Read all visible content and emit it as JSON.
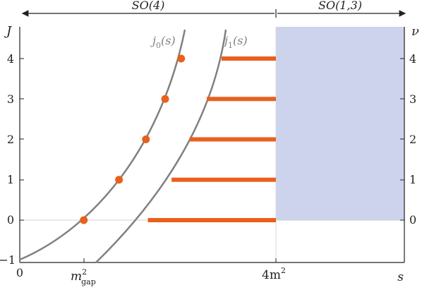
{
  "regions": {
    "left": {
      "label": "SO(4)"
    },
    "right": {
      "label": "SO(1,3)"
    }
  },
  "axes": {
    "left_label": "J",
    "right_label": "ν",
    "x_label": "s",
    "y_ticks": [
      "4",
      "3",
      "2",
      "1",
      "0",
      "−1"
    ],
    "right_ticks": [
      "4",
      "3",
      "2",
      "1",
      "0"
    ],
    "x_ticks": {
      "zero": "0",
      "gap": "m",
      "gap_sup": "2",
      "gap_sub": "gap",
      "four": "4m",
      "four_sup": "2"
    },
    "x_range": [
      0,
      4
    ],
    "y_range": [
      -1,
      4.8
    ]
  },
  "curves": {
    "j0": {
      "label": "j",
      "sub": "0",
      "arg": "(s)"
    },
    "j1": {
      "label": "j",
      "sub": "1",
      "arg": "(s)"
    }
  },
  "colors": {
    "curve": "#808080",
    "accent": "#e8601c",
    "shade": "#cdd3ec",
    "axis": "#222222",
    "baseline": "#d0d0d0"
  },
  "chart_data": {
    "type": "diagram",
    "dots": [
      {
        "J": 0,
        "s": 1.0
      },
      {
        "J": 1,
        "s": 1.55
      },
      {
        "J": 2,
        "s": 1.97
      },
      {
        "J": 3,
        "s": 2.27
      },
      {
        "J": 4,
        "s": 2.52
      }
    ],
    "bars": [
      {
        "J": 0,
        "s_start": 2.0,
        "s_end": 4.0
      },
      {
        "J": 1,
        "s_start": 2.37,
        "s_end": 4.0
      },
      {
        "J": 2,
        "s_start": 2.65,
        "s_end": 4.0
      },
      {
        "J": 3,
        "s_start": 2.92,
        "s_end": 4.0
      },
      {
        "J": 4,
        "s_start": 3.15,
        "s_end": 4.0
      }
    ],
    "shaded_region": {
      "s_min": 4.0,
      "J_min": 0
    }
  }
}
